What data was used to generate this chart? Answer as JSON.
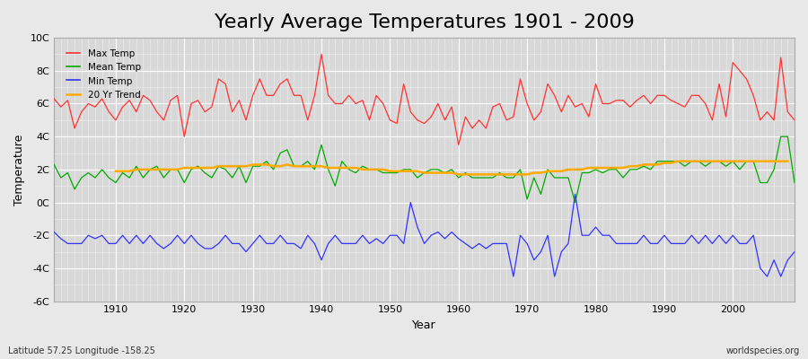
{
  "title": "Yearly Average Temperatures 1901 - 2009",
  "xlabel": "Year",
  "ylabel": "Temperature",
  "lat_lon_text": "Latitude 57.25 Longitude -158.25",
  "credit_text": "worldspecies.org",
  "ylim": [
    -6,
    10
  ],
  "ytick_labels": [
    "-6C",
    "-4C",
    "-2C",
    "0C",
    "2C",
    "4C",
    "6C",
    "8C",
    "10C"
  ],
  "ytick_values": [
    -6,
    -4,
    -2,
    0,
    2,
    4,
    6,
    8,
    10
  ],
  "xlim": [
    1901,
    2009
  ],
  "legend_labels": [
    "Max Temp",
    "Mean Temp",
    "Min Temp",
    "20 Yr Trend"
  ],
  "legend_colors": [
    "#ff3333",
    "#00aa00",
    "#3333ff",
    "#ffaa00"
  ],
  "line_colors": [
    "#ff3333",
    "#00aa00",
    "#3333ff",
    "#ffaa00"
  ],
  "background_color": "#e8e8e8",
  "plot_bg_color": "#d8d8d8",
  "grid_color": "#ffffff",
  "title_fontsize": 16,
  "years": [
    1901,
    1902,
    1903,
    1904,
    1905,
    1906,
    1907,
    1908,
    1909,
    1910,
    1911,
    1912,
    1913,
    1914,
    1915,
    1916,
    1917,
    1918,
    1919,
    1920,
    1921,
    1922,
    1923,
    1924,
    1925,
    1926,
    1927,
    1928,
    1929,
    1930,
    1931,
    1932,
    1933,
    1934,
    1935,
    1936,
    1937,
    1938,
    1939,
    1940,
    1941,
    1942,
    1943,
    1944,
    1945,
    1946,
    1947,
    1948,
    1949,
    1950,
    1951,
    1952,
    1953,
    1954,
    1955,
    1956,
    1957,
    1958,
    1959,
    1960,
    1961,
    1962,
    1963,
    1964,
    1965,
    1966,
    1967,
    1968,
    1969,
    1970,
    1971,
    1972,
    1973,
    1974,
    1975,
    1976,
    1977,
    1978,
    1979,
    1980,
    1981,
    1982,
    1983,
    1984,
    1985,
    1986,
    1987,
    1988,
    1989,
    1990,
    1991,
    1992,
    1993,
    1994,
    1995,
    1996,
    1997,
    1998,
    1999,
    2000,
    2001,
    2002,
    2003,
    2004,
    2005,
    2006,
    2007,
    2008,
    2009
  ],
  "max_temp": [
    6.3,
    5.8,
    6.2,
    4.5,
    5.5,
    6.0,
    5.8,
    6.3,
    5.5,
    5.0,
    5.8,
    6.2,
    5.5,
    6.5,
    6.2,
    5.5,
    5.0,
    6.2,
    6.5,
    4.0,
    6.0,
    6.2,
    5.5,
    5.8,
    7.5,
    7.2,
    5.5,
    6.2,
    5.0,
    6.5,
    7.5,
    6.5,
    6.5,
    7.2,
    7.5,
    6.5,
    6.5,
    5.0,
    6.5,
    9.0,
    6.5,
    6.0,
    6.0,
    6.5,
    6.0,
    6.2,
    5.0,
    6.5,
    6.0,
    5.0,
    4.8,
    7.2,
    5.5,
    5.0,
    4.8,
    5.2,
    6.0,
    5.0,
    5.8,
    3.5,
    5.2,
    4.5,
    5.0,
    4.5,
    5.8,
    6.0,
    5.0,
    5.2,
    7.5,
    6.0,
    5.0,
    5.5,
    7.2,
    6.5,
    5.5,
    6.5,
    5.8,
    6.0,
    5.2,
    7.2,
    6.0,
    6.0,
    6.2,
    6.2,
    5.8,
    6.2,
    6.5,
    6.0,
    6.5,
    6.5,
    6.2,
    6.0,
    5.8,
    6.5,
    6.5,
    6.0,
    5.0,
    7.2,
    5.2,
    8.5,
    8.0,
    7.5,
    6.5,
    5.0,
    5.5,
    5.0,
    8.8,
    5.5,
    5.0
  ],
  "mean_temp": [
    2.3,
    1.5,
    1.8,
    0.8,
    1.5,
    1.8,
    1.5,
    2.0,
    1.5,
    1.2,
    1.8,
    1.5,
    2.2,
    1.5,
    2.0,
    2.2,
    1.5,
    2.0,
    2.0,
    1.2,
    2.0,
    2.2,
    1.8,
    1.5,
    2.2,
    2.0,
    1.5,
    2.2,
    1.2,
    2.2,
    2.2,
    2.5,
    2.0,
    3.0,
    3.2,
    2.2,
    2.2,
    2.5,
    2.0,
    3.5,
    2.0,
    1.0,
    2.5,
    2.0,
    1.8,
    2.2,
    2.0,
    2.0,
    1.8,
    1.8,
    1.8,
    2.0,
    2.0,
    1.5,
    1.8,
    2.0,
    2.0,
    1.8,
    2.0,
    1.5,
    1.8,
    1.5,
    1.5,
    1.5,
    1.5,
    1.8,
    1.5,
    1.5,
    2.0,
    0.2,
    1.5,
    0.5,
    2.0,
    1.5,
    1.5,
    1.5,
    0.0,
    1.8,
    1.8,
    2.0,
    1.8,
    2.0,
    2.0,
    1.5,
    2.0,
    2.0,
    2.2,
    2.0,
    2.5,
    2.5,
    2.5,
    2.5,
    2.2,
    2.5,
    2.5,
    2.2,
    2.5,
    2.5,
    2.2,
    2.5,
    2.0,
    2.5,
    2.5,
    1.2,
    1.2,
    2.0,
    4.0,
    4.0,
    1.2
  ],
  "min_temp": [
    -1.8,
    -2.2,
    -2.5,
    -2.5,
    -2.5,
    -2.0,
    -2.2,
    -2.0,
    -2.5,
    -2.5,
    -2.0,
    -2.5,
    -2.0,
    -2.5,
    -2.0,
    -2.5,
    -2.8,
    -2.5,
    -2.0,
    -2.5,
    -2.0,
    -2.5,
    -2.8,
    -2.8,
    -2.5,
    -2.0,
    -2.5,
    -2.5,
    -3.0,
    -2.5,
    -2.0,
    -2.5,
    -2.5,
    -2.0,
    -2.5,
    -2.5,
    -2.8,
    -2.0,
    -2.5,
    -3.5,
    -2.5,
    -2.0,
    -2.5,
    -2.5,
    -2.5,
    -2.0,
    -2.5,
    -2.2,
    -2.5,
    -2.0,
    -2.0,
    -2.5,
    0.0,
    -1.5,
    -2.5,
    -2.0,
    -1.8,
    -2.2,
    -1.8,
    -2.2,
    -2.5,
    -2.8,
    -2.5,
    -2.8,
    -2.5,
    -2.5,
    -2.5,
    -4.5,
    -2.0,
    -2.5,
    -3.5,
    -3.0,
    -2.0,
    -4.5,
    -3.0,
    -2.5,
    0.5,
    -2.0,
    -2.0,
    -1.5,
    -2.0,
    -2.0,
    -2.5,
    -2.5,
    -2.5,
    -2.5,
    -2.0,
    -2.5,
    -2.5,
    -2.0,
    -2.5,
    -2.5,
    -2.5,
    -2.0,
    -2.5,
    -2.0,
    -2.5,
    -2.0,
    -2.5,
    -2.0,
    -2.5,
    -2.5,
    -2.0,
    -4.0,
    -4.5,
    -3.5,
    -4.5,
    -3.5,
    -3.0
  ],
  "trend_20yr": [
    null,
    null,
    null,
    null,
    null,
    null,
    null,
    null,
    null,
    1.9,
    1.9,
    1.9,
    2.0,
    2.0,
    2.0,
    2.0,
    2.0,
    2.0,
    2.0,
    2.1,
    2.1,
    2.1,
    2.1,
    2.1,
    2.2,
    2.2,
    2.2,
    2.2,
    2.2,
    2.3,
    2.3,
    2.3,
    2.2,
    2.2,
    2.3,
    2.2,
    2.2,
    2.2,
    2.2,
    2.2,
    2.1,
    2.1,
    2.1,
    2.1,
    2.1,
    2.0,
    2.0,
    2.0,
    2.0,
    1.9,
    1.9,
    1.9,
    1.9,
    1.9,
    1.8,
    1.8,
    1.8,
    1.8,
    1.8,
    1.7,
    1.7,
    1.7,
    1.7,
    1.7,
    1.7,
    1.7,
    1.7,
    1.7,
    1.7,
    1.7,
    1.8,
    1.8,
    1.9,
    1.9,
    1.9,
    2.0,
    2.0,
    2.0,
    2.1,
    2.1,
    2.1,
    2.1,
    2.1,
    2.1,
    2.2,
    2.2,
    2.3,
    2.3,
    2.3,
    2.4,
    2.4,
    2.5,
    2.5,
    2.5,
    2.5,
    2.5,
    2.5,
    2.5,
    2.5,
    2.5,
    2.5,
    2.5,
    2.5,
    2.5,
    2.5,
    2.5,
    2.5,
    2.5
  ]
}
